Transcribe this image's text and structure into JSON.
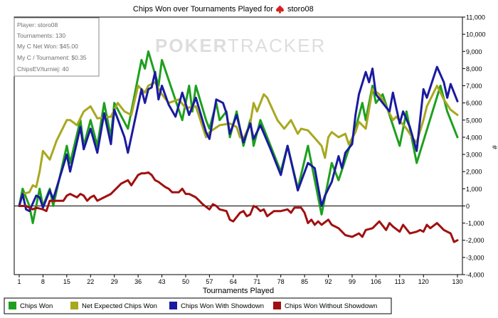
{
  "chart_data": {
    "type": "line",
    "title": "Chips Won over Tournaments Played for",
    "player_name": "storo08",
    "xlabel": "Tournaments Played",
    "ylabel": "#",
    "watermark": {
      "bold": "POKER",
      "light": "TRACKER"
    },
    "xlim": [
      1,
      130
    ],
    "ylim": [
      -4000,
      11000
    ],
    "x_ticks": [
      1,
      8,
      15,
      22,
      29,
      36,
      43,
      50,
      57,
      64,
      71,
      78,
      85,
      92,
      99,
      106,
      113,
      120,
      130
    ],
    "y_ticks": [
      -4000,
      -3000,
      -2000,
      -1000,
      0,
      1000,
      2000,
      3000,
      4000,
      5000,
      6000,
      7000,
      8000,
      9000,
      10000,
      11000
    ],
    "y_tick_labels": [
      "-4,000",
      "-3,000",
      "-2,000",
      "-1,000",
      "0",
      "1,000",
      "2,000",
      "3,000",
      "4,000",
      "5,000",
      "6,000",
      "7,000",
      "8,000",
      "9,000",
      "10,000",
      "11,000"
    ],
    "stats_box": [
      "Player: storo08",
      "Tournaments: 130",
      "My C Net Won: $45.00",
      "My C / Tournament: $0.35",
      "ChipsEV/turniej: 40"
    ],
    "series": [
      {
        "name": "Chips Won",
        "color": "#1ea01e",
        "points": [
          [
            1,
            0
          ],
          [
            2,
            1000
          ],
          [
            4,
            0
          ],
          [
            5,
            -1000
          ],
          [
            7,
            1000
          ],
          [
            8,
            0
          ],
          [
            10,
            1000
          ],
          [
            11,
            0
          ],
          [
            15,
            3500
          ],
          [
            16,
            2500
          ],
          [
            19,
            5000
          ],
          [
            20,
            3500
          ],
          [
            22,
            5000
          ],
          [
            24,
            3500
          ],
          [
            26,
            6000
          ],
          [
            28,
            4000
          ],
          [
            29,
            6000
          ],
          [
            33,
            4500
          ],
          [
            37,
            8500
          ],
          [
            38,
            8000
          ],
          [
            39,
            9000
          ],
          [
            42,
            7000
          ],
          [
            43,
            8500
          ],
          [
            49,
            5000
          ],
          [
            51,
            7000
          ],
          [
            52,
            5500
          ],
          [
            53,
            7000
          ],
          [
            56,
            5000
          ],
          [
            57,
            4500
          ],
          [
            59,
            6000
          ],
          [
            60,
            5000
          ],
          [
            62,
            5500
          ],
          [
            63,
            4000
          ],
          [
            65,
            5500
          ],
          [
            67,
            3500
          ],
          [
            69,
            5000
          ],
          [
            70,
            3500
          ],
          [
            72,
            5000
          ],
          [
            78,
            2000
          ],
          [
            80,
            3500
          ],
          [
            83,
            1000
          ],
          [
            86,
            3500
          ],
          [
            90,
            -500
          ],
          [
            93,
            2500
          ],
          [
            95,
            1500
          ],
          [
            100,
            4500
          ],
          [
            102,
            6000
          ],
          [
            103,
            5000
          ],
          [
            105,
            7000
          ],
          [
            106,
            6000
          ],
          [
            108,
            6500
          ],
          [
            113,
            3500
          ],
          [
            115,
            5500
          ],
          [
            118,
            2500
          ],
          [
            125,
            7000
          ],
          [
            127,
            5500
          ],
          [
            130,
            4000
          ]
        ]
      },
      {
        "name": "Net Expected Chips Won",
        "color": "#a8a820",
        "points": [
          [
            1,
            0
          ],
          [
            2,
            700
          ],
          [
            4,
            800
          ],
          [
            5,
            1200
          ],
          [
            6,
            1100
          ],
          [
            7,
            2000
          ],
          [
            8,
            3200
          ],
          [
            10,
            2700
          ],
          [
            12,
            3800
          ],
          [
            15,
            5000
          ],
          [
            16,
            5000
          ],
          [
            18,
            4700
          ],
          [
            20,
            5500
          ],
          [
            22,
            5800
          ],
          [
            24,
            5100
          ],
          [
            28,
            5200
          ],
          [
            30,
            6000
          ],
          [
            32,
            5500
          ],
          [
            34,
            5300
          ],
          [
            36,
            7000
          ],
          [
            38,
            6600
          ],
          [
            39,
            7000
          ],
          [
            41,
            7200
          ],
          [
            43,
            6500
          ],
          [
            45,
            6000
          ],
          [
            48,
            6200
          ],
          [
            50,
            5700
          ],
          [
            53,
            5800
          ],
          [
            56,
            4000
          ],
          [
            57,
            4300
          ],
          [
            60,
            4700
          ],
          [
            63,
            4800
          ],
          [
            65,
            4600
          ],
          [
            66,
            4000
          ],
          [
            67,
            3900
          ],
          [
            69,
            4800
          ],
          [
            70,
            6000
          ],
          [
            71,
            5500
          ],
          [
            73,
            6500
          ],
          [
            74,
            6300
          ],
          [
            77,
            5000
          ],
          [
            79,
            4500
          ],
          [
            81,
            5000
          ],
          [
            83,
            4200
          ],
          [
            84,
            4500
          ],
          [
            86,
            4400
          ],
          [
            90,
            3500
          ],
          [
            91,
            2800
          ],
          [
            92,
            4000
          ],
          [
            93,
            4300
          ],
          [
            95,
            4000
          ],
          [
            97,
            4200
          ],
          [
            98,
            3600
          ],
          [
            100,
            4300
          ],
          [
            101,
            4900
          ],
          [
            103,
            4500
          ],
          [
            105,
            6800
          ],
          [
            107,
            6500
          ],
          [
            109,
            5800
          ],
          [
            111,
            5000
          ],
          [
            112,
            5200
          ],
          [
            115,
            4500
          ],
          [
            117,
            3900
          ],
          [
            118,
            3700
          ],
          [
            120,
            5000
          ],
          [
            121,
            5800
          ],
          [
            122,
            6200
          ],
          [
            124,
            7000
          ],
          [
            126,
            6200
          ],
          [
            128,
            5600
          ],
          [
            130,
            5300
          ]
        ]
      },
      {
        "name": "Chips Won With Showdown",
        "color": "#1a1aa0",
        "points": [
          [
            1,
            0
          ],
          [
            2,
            700
          ],
          [
            3,
            -200
          ],
          [
            4,
            -300
          ],
          [
            6,
            600
          ],
          [
            7,
            500
          ],
          [
            8,
            -100
          ],
          [
            10,
            900
          ],
          [
            11,
            400
          ],
          [
            15,
            3000
          ],
          [
            16,
            2000
          ],
          [
            19,
            4600
          ],
          [
            20,
            3300
          ],
          [
            22,
            4500
          ],
          [
            24,
            3100
          ],
          [
            26,
            5400
          ],
          [
            28,
            3600
          ],
          [
            29,
            5600
          ],
          [
            32,
            4000
          ],
          [
            33,
            3100
          ],
          [
            37,
            6800
          ],
          [
            38,
            6000
          ],
          [
            39,
            6800
          ],
          [
            40,
            6900
          ],
          [
            41,
            7800
          ],
          [
            42,
            6200
          ],
          [
            43,
            7000
          ],
          [
            45,
            5900
          ],
          [
            47,
            5200
          ],
          [
            49,
            6600
          ],
          [
            51,
            5300
          ],
          [
            53,
            6300
          ],
          [
            56,
            4300
          ],
          [
            57,
            3900
          ],
          [
            59,
            6200
          ],
          [
            61,
            6000
          ],
          [
            62,
            5400
          ],
          [
            63,
            4200
          ],
          [
            65,
            5300
          ],
          [
            67,
            3700
          ],
          [
            69,
            4800
          ],
          [
            70,
            3900
          ],
          [
            72,
            4700
          ],
          [
            75,
            3300
          ],
          [
            78,
            1800
          ],
          [
            80,
            3500
          ],
          [
            83,
            900
          ],
          [
            86,
            2500
          ],
          [
            88,
            2200
          ],
          [
            90,
            0
          ],
          [
            91,
            600
          ],
          [
            93,
            1400
          ],
          [
            95,
            2900
          ],
          [
            96,
            2200
          ],
          [
            97,
            3100
          ],
          [
            99,
            3600
          ],
          [
            100,
            5300
          ],
          [
            101,
            6500
          ],
          [
            103,
            7800
          ],
          [
            104,
            7200
          ],
          [
            105,
            8000
          ],
          [
            106,
            6500
          ],
          [
            108,
            6000
          ],
          [
            110,
            5500
          ],
          [
            111,
            6600
          ],
          [
            113,
            4800
          ],
          [
            114,
            5500
          ],
          [
            116,
            4600
          ],
          [
            118,
            3200
          ],
          [
            120,
            6800
          ],
          [
            121,
            6300
          ],
          [
            124,
            8100
          ],
          [
            126,
            7200
          ],
          [
            127,
            6300
          ],
          [
            128,
            7100
          ],
          [
            130,
            6100
          ]
        ]
      },
      {
        "name": "Chips Won Without Showdown",
        "color": "#a01010",
        "points": [
          [
            1,
            0
          ],
          [
            3,
            0
          ],
          [
            5,
            -200
          ],
          [
            6,
            -100
          ],
          [
            8,
            -200
          ],
          [
            9,
            -300
          ],
          [
            10,
            300
          ],
          [
            13,
            300
          ],
          [
            14,
            300
          ],
          [
            15,
            600
          ],
          [
            16,
            700
          ],
          [
            17,
            600
          ],
          [
            18,
            500
          ],
          [
            19,
            700
          ],
          [
            20,
            600
          ],
          [
            21,
            300
          ],
          [
            22,
            500
          ],
          [
            23,
            600
          ],
          [
            24,
            300
          ],
          [
            26,
            500
          ],
          [
            28,
            700
          ],
          [
            29,
            900
          ],
          [
            30,
            1100
          ],
          [
            31,
            1300
          ],
          [
            33,
            1500
          ],
          [
            34,
            1200
          ],
          [
            36,
            1800
          ],
          [
            37,
            1900
          ],
          [
            38,
            1900
          ],
          [
            39,
            1950
          ],
          [
            40,
            1800
          ],
          [
            41,
            1500
          ],
          [
            42,
            1400
          ],
          [
            44,
            1100
          ],
          [
            45,
            1000
          ],
          [
            46,
            800
          ],
          [
            48,
            800
          ],
          [
            49,
            1000
          ],
          [
            50,
            700
          ],
          [
            51,
            700
          ],
          [
            53,
            500
          ],
          [
            54,
            300
          ],
          [
            55,
            100
          ],
          [
            57,
            -200
          ],
          [
            58,
            100
          ],
          [
            59,
            0
          ],
          [
            60,
            -200
          ],
          [
            62,
            -300
          ],
          [
            63,
            -800
          ],
          [
            64,
            -900
          ],
          [
            66,
            -400
          ],
          [
            67,
            -300
          ],
          [
            68,
            -600
          ],
          [
            69,
            -500
          ],
          [
            70,
            0
          ],
          [
            71,
            -100
          ],
          [
            72,
            -300
          ],
          [
            73,
            -200
          ],
          [
            74,
            -600
          ],
          [
            76,
            -300
          ],
          [
            78,
            -300
          ],
          [
            80,
            -200
          ],
          [
            81,
            -400
          ],
          [
            82,
            -100
          ],
          [
            84,
            -100
          ],
          [
            85,
            -400
          ],
          [
            86,
            -1000
          ],
          [
            87,
            -800
          ],
          [
            88,
            -1100
          ],
          [
            89,
            -900
          ],
          [
            90,
            -1100
          ],
          [
            92,
            -800
          ],
          [
            93,
            -1100
          ],
          [
            95,
            -1300
          ],
          [
            97,
            -1700
          ],
          [
            99,
            -1800
          ],
          [
            101,
            -1600
          ],
          [
            102,
            -1800
          ],
          [
            103,
            -1400
          ],
          [
            105,
            -1300
          ],
          [
            107,
            -900
          ],
          [
            109,
            -1400
          ],
          [
            110,
            -1000
          ],
          [
            111,
            -1200
          ],
          [
            113,
            -1500
          ],
          [
            114,
            -1100
          ],
          [
            116,
            -1600
          ],
          [
            118,
            -1500
          ],
          [
            119,
            -1400
          ],
          [
            120,
            -1500
          ],
          [
            121,
            -1100
          ],
          [
            122,
            -1300
          ],
          [
            124,
            -1000
          ],
          [
            126,
            -1400
          ],
          [
            128,
            -1600
          ],
          [
            129,
            -2100
          ],
          [
            130,
            -2000
          ]
        ]
      }
    ]
  }
}
